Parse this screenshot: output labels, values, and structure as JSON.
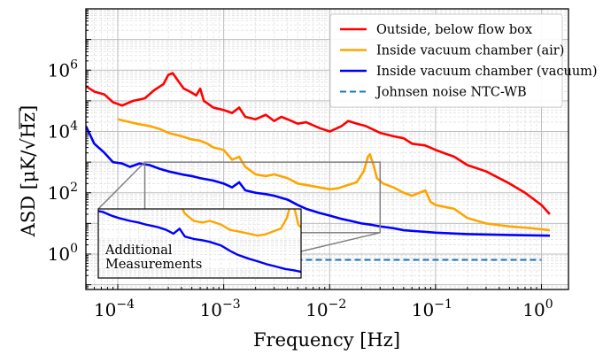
{
  "chart_data": {
    "type": "line",
    "xlabel": "Frequency [Hz]",
    "ylabel": "ASD [μK/√Hz]",
    "ylabel_parts": {
      "prefix": "ASD [μK/",
      "root": "√",
      "unit": "Hz",
      "suffix": "]"
    },
    "xscale": "log",
    "yscale": "log",
    "xlim": [
      5e-05,
      1.8
    ],
    "ylim": [
      0.07,
      100000000
    ],
    "grid": "major and minor",
    "x_ticks": [
      {
        "value": 0.0001,
        "base": "10",
        "exp": "−4"
      },
      {
        "value": 0.001,
        "base": "10",
        "exp": "−3"
      },
      {
        "value": 0.01,
        "base": "10",
        "exp": "−2"
      },
      {
        "value": 0.1,
        "base": "10",
        "exp": "−1"
      },
      {
        "value": 1,
        "base": "10",
        "exp": "0"
      }
    ],
    "y_ticks": [
      {
        "value": 1,
        "base": "10",
        "exp": "0"
      },
      {
        "value": 100,
        "base": "10",
        "exp": "2"
      },
      {
        "value": 10000,
        "base": "10",
        "exp": "4"
      },
      {
        "value": 1000000,
        "base": "10",
        "exp": "6"
      }
    ],
    "legend_position": "top-right",
    "series": [
      {
        "name": "Outside, below flow box",
        "color": "#ff0000",
        "points": [
          [
            5e-05,
            300000
          ],
          [
            6e-05,
            200000
          ],
          [
            7.5e-05,
            160000
          ],
          [
            9e-05,
            90000
          ],
          [
            0.00011,
            70000
          ],
          [
            0.00014,
            100000
          ],
          [
            0.00018,
            120000
          ],
          [
            0.00022,
            220000
          ],
          [
            0.00027,
            350000
          ],
          [
            0.0003,
            700000
          ],
          [
            0.00033,
            800000
          ],
          [
            0.00038,
            400000
          ],
          [
            0.00042,
            250000
          ],
          [
            0.00048,
            200000
          ],
          [
            0.00055,
            150000
          ],
          [
            0.0006,
            250000
          ],
          [
            0.00065,
            100000
          ],
          [
            0.0008,
            60000
          ],
          [
            0.001,
            50000
          ],
          [
            0.0012,
            40000
          ],
          [
            0.0014,
            60000
          ],
          [
            0.0016,
            30000
          ],
          [
            0.002,
            25000
          ],
          [
            0.0025,
            35000
          ],
          [
            0.003,
            22000
          ],
          [
            0.0035,
            30000
          ],
          [
            0.004,
            25000
          ],
          [
            0.005,
            18000
          ],
          [
            0.006,
            20000
          ],
          [
            0.008,
            13000
          ],
          [
            0.01,
            10000
          ],
          [
            0.013,
            15000
          ],
          [
            0.015,
            22000
          ],
          [
            0.018,
            18000
          ],
          [
            0.022,
            15000
          ],
          [
            0.03,
            9000
          ],
          [
            0.04,
            7000
          ],
          [
            0.05,
            6000
          ],
          [
            0.06,
            4000
          ],
          [
            0.08,
            3500
          ],
          [
            0.1,
            2500
          ],
          [
            0.15,
            1500
          ],
          [
            0.2,
            800
          ],
          [
            0.3,
            500
          ],
          [
            0.5,
            200
          ],
          [
            0.7,
            100
          ],
          [
            1,
            40
          ],
          [
            1.2,
            20
          ]
        ]
      },
      {
        "name": "Inside vacuum chamber (air)",
        "color": "#ffa500",
        "points": [
          [
            0.0001,
            25000
          ],
          [
            0.00015,
            18000
          ],
          [
            0.0002,
            15000
          ],
          [
            0.00025,
            12000
          ],
          [
            0.0003,
            9000
          ],
          [
            0.0004,
            7000
          ],
          [
            0.0005,
            5500
          ],
          [
            0.0006,
            5000
          ],
          [
            0.0007,
            4000
          ],
          [
            0.0008,
            3000
          ],
          [
            0.001,
            2500
          ],
          [
            0.0012,
            1200
          ],
          [
            0.0014,
            1500
          ],
          [
            0.0016,
            700
          ],
          [
            0.002,
            400
          ],
          [
            0.0025,
            350
          ],
          [
            0.003,
            400
          ],
          [
            0.004,
            300
          ],
          [
            0.005,
            200
          ],
          [
            0.006,
            180
          ],
          [
            0.008,
            150
          ],
          [
            0.01,
            130
          ],
          [
            0.012,
            140
          ],
          [
            0.015,
            180
          ],
          [
            0.018,
            220
          ],
          [
            0.021,
            500
          ],
          [
            0.023,
            1500
          ],
          [
            0.024,
            1800
          ],
          [
            0.026,
            800
          ],
          [
            0.028,
            300
          ],
          [
            0.032,
            200
          ],
          [
            0.04,
            150
          ],
          [
            0.05,
            100
          ],
          [
            0.06,
            80
          ],
          [
            0.08,
            120
          ],
          [
            0.09,
            50
          ],
          [
            0.1,
            40
          ],
          [
            0.15,
            30
          ],
          [
            0.2,
            15
          ],
          [
            0.3,
            10
          ],
          [
            0.5,
            8
          ],
          [
            0.8,
            7
          ],
          [
            1.2,
            6
          ]
        ]
      },
      {
        "name": "Inside vacuum chamber (vacuum)",
        "color": "#0000ff",
        "points": [
          [
            5e-05,
            15000
          ],
          [
            6e-05,
            4000
          ],
          [
            7.5e-05,
            2000
          ],
          [
            9e-05,
            1000
          ],
          [
            0.00011,
            900
          ],
          [
            0.00013,
            700
          ],
          [
            0.00016,
            900
          ],
          [
            0.0002,
            800
          ],
          [
            0.00025,
            600
          ],
          [
            0.0003,
            500
          ],
          [
            0.0004,
            400
          ],
          [
            0.0005,
            350
          ],
          [
            0.0006,
            300
          ],
          [
            0.0008,
            250
          ],
          [
            0.001,
            200
          ],
          [
            0.0012,
            150
          ],
          [
            0.0014,
            220
          ],
          [
            0.0016,
            120
          ],
          [
            0.002,
            100
          ],
          [
            0.0025,
            90
          ],
          [
            0.003,
            80
          ],
          [
            0.004,
            60
          ],
          [
            0.005,
            40
          ],
          [
            0.006,
            30
          ],
          [
            0.008,
            22
          ],
          [
            0.01,
            18
          ],
          [
            0.013,
            14
          ],
          [
            0.016,
            12
          ],
          [
            0.02,
            10
          ],
          [
            0.025,
            9
          ],
          [
            0.03,
            8
          ],
          [
            0.04,
            7
          ],
          [
            0.05,
            6
          ],
          [
            0.07,
            5.5
          ],
          [
            0.1,
            5
          ],
          [
            0.2,
            4.5
          ],
          [
            0.5,
            4.2
          ],
          [
            1.2,
            4
          ]
        ]
      },
      {
        "name": "Johnsen noise NTC-WB",
        "color": "#1f77b4",
        "dashed": true,
        "points": [
          [
            7e-05,
            0.65
          ],
          [
            1,
            0.65
          ]
        ]
      }
    ],
    "inset": {
      "label_lines": [
        "Additional",
        "Measurements"
      ],
      "zoom_region": {
        "x": [
          0.00018,
          0.03
        ],
        "y": [
          5,
          1000
        ]
      }
    }
  }
}
